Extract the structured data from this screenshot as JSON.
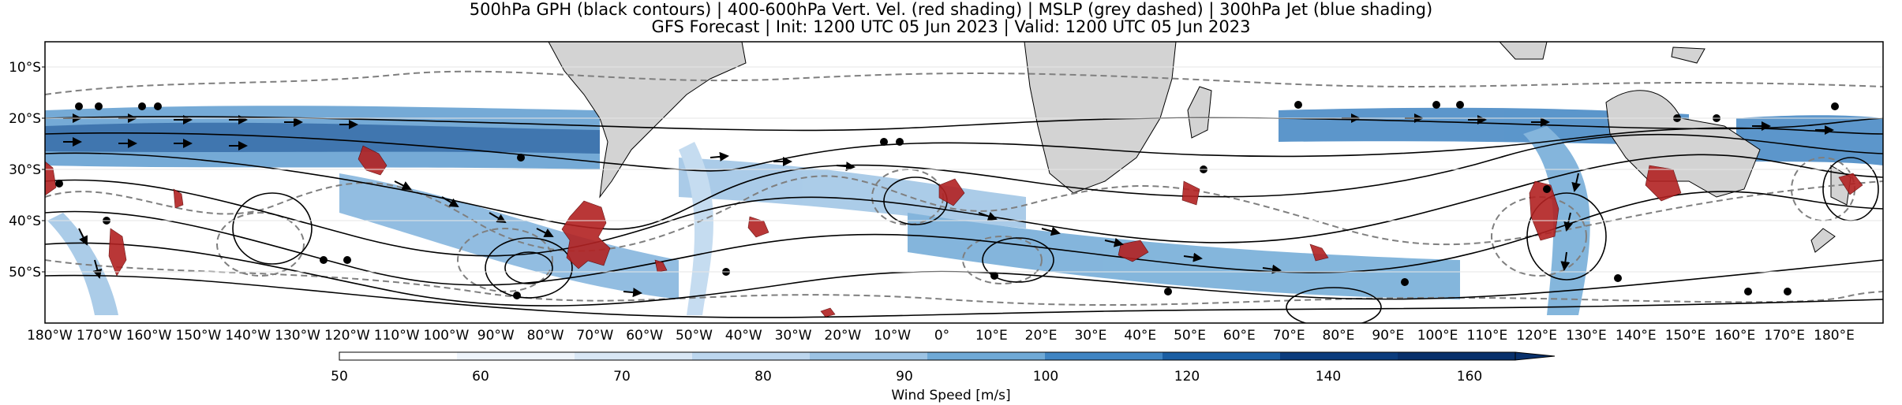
{
  "title_line1": "500hPa GPH (black contours) | 400-600hPa Vert. Vel. (red shading) | MSLP (grey dashed) | 300hPa Jet (blue shading)",
  "title_line2": "GFS Forecast | Init: 1200 UTC 05 Jun 2023 | Valid: 1200 UTC 05 Jun 2023",
  "lat_labels": [
    "10°S",
    "20°S",
    "30°S",
    "40°S",
    "50°S"
  ],
  "lon_labels": [
    "180°W",
    "170°W",
    "160°W",
    "150°W",
    "140°W",
    "130°W",
    "120°W",
    "110°W",
    "100°W",
    "90°W",
    "80°W",
    "70°W",
    "60°W",
    "50°W",
    "40°W",
    "30°W",
    "20°W",
    "10°W",
    "0°",
    "10°E",
    "20°E",
    "30°E",
    "40°E",
    "50°E",
    "60°E",
    "70°E",
    "80°E",
    "90°E",
    "100°E",
    "110°E",
    "120°E",
    "130°E",
    "140°E",
    "150°E",
    "160°E",
    "170°E",
    "180°E"
  ],
  "colorbar": {
    "label": "Wind Speed [m/s]",
    "ticks": [
      "50",
      "60",
      "70",
      "80",
      "90",
      "100",
      "120",
      "140",
      "160"
    ],
    "colors": [
      "#ffffff",
      "#eef4fb",
      "#d9e7f5",
      "#bcd6ee",
      "#9cc3e4",
      "#6fa9d6",
      "#3f84c2",
      "#1a5ea3",
      "#0b3c7d",
      "#08306b"
    ]
  },
  "colors": {
    "land": "#d3d3d3",
    "gph_contour": "#000000",
    "mslp_contour": "#7f7f7f",
    "vertical_velocity": "#b22222"
  }
}
